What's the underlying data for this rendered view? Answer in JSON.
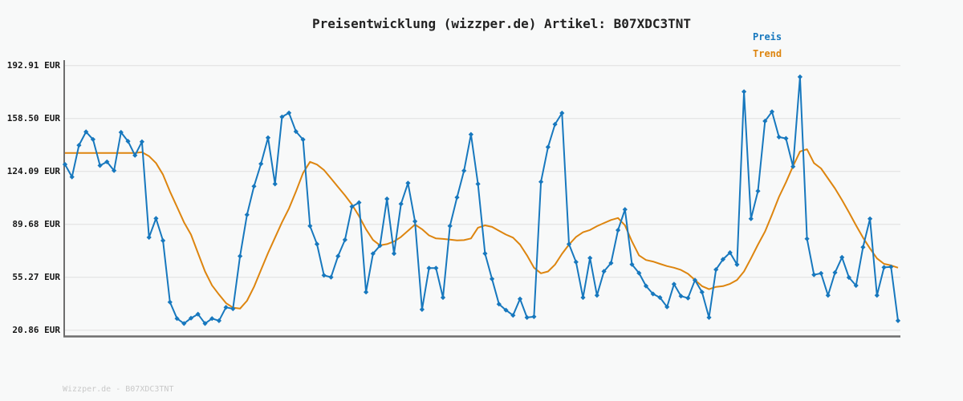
{
  "page": {
    "footer": "Wizzper.de - B07XDC3TNT"
  },
  "colors": {
    "background": "#f8f9f9",
    "grid": "#e6e6e6",
    "spine": "#6e6e6e",
    "price_blue": "#1778be",
    "trend_orange": "#dd850f",
    "title_text": "#222222",
    "tick_text": "#161616",
    "footer_text": "#c9c9c9"
  },
  "chart_data": {
    "type": "line",
    "title": "Preisentwicklung (wizzper.de) Artikel: B07XDC3TNT",
    "currency": "EUR",
    "grid": true,
    "legend": {
      "position": "top-right",
      "entries": [
        "Preis",
        "Trend"
      ]
    },
    "x_axis": {
      "tick_labels_visible": false,
      "points": 120
    },
    "y_axis": {
      "tick_labels": [
        "192.91 EUR",
        "158.50 EUR",
        "124.09 EUR",
        "89.68 EUR",
        "55.27 EUR",
        "20.86 EUR"
      ],
      "tick_values": [
        192.91,
        158.5,
        124.09,
        89.68,
        55.27,
        20.86
      ],
      "ylim": [
        17.4,
        196.4
      ]
    },
    "series": [
      {
        "name": "Preis",
        "color": "#1778be",
        "marker": "diamond",
        "values": [
          128.6,
          120.5,
          141.1,
          149.8,
          144.9,
          127.9,
          130.3,
          124.6,
          149.5,
          143.7,
          134.5,
          143.4,
          81.2,
          93.5,
          79.1,
          39.1,
          28.4,
          25.2,
          28.7,
          31.3,
          25.2,
          28.4,
          27.0,
          35.7,
          34.8,
          69.0,
          95.9,
          114.4,
          129.0,
          146.0,
          115.9,
          159.5,
          162.1,
          150.0,
          144.8,
          88.6,
          76.8,
          56.5,
          55.3,
          69.0,
          79.6,
          101.2,
          103.8,
          45.6,
          70.6,
          75.8,
          106.2,
          70.7,
          102.9,
          116.5,
          91.6,
          34.3,
          61.2,
          61.2,
          42.1,
          88.6,
          107.2,
          124.5,
          148.1,
          115.9,
          70.7,
          54.2,
          37.8,
          33.9,
          30.5,
          41.2,
          29.1,
          29.6,
          117.3,
          139.9,
          154.7,
          162.0,
          76.8,
          65.2,
          42.1,
          67.8,
          43.5,
          59.1,
          64.5,
          85.9,
          99.3,
          63.6,
          58.0,
          49.6,
          44.4,
          42.1,
          36.0,
          50.8,
          43.0,
          41.7,
          53.4,
          45.6,
          29.1,
          60.3,
          66.9,
          71.3,
          63.5,
          175.9,
          93.3,
          111.3,
          156.8,
          162.9,
          146.4,
          145.5,
          127.2,
          185.5,
          80.3,
          56.9,
          57.8,
          43.5,
          58.3,
          68.2,
          55.1,
          49.9,
          74.8,
          93.3,
          43.5,
          61.7,
          62.0,
          27.0
        ]
      },
      {
        "name": "Trend",
        "color": "#dd850f",
        "marker": "none",
        "values": [
          136.1,
          136.1,
          136.1,
          136.1,
          136.1,
          136.1,
          136.1,
          136.1,
          136.1,
          136.1,
          136.1,
          136.6,
          134.0,
          129.5,
          122.0,
          111.0,
          101.0,
          91.0,
          83.0,
          71.0,
          59.0,
          50.0,
          44.0,
          38.5,
          35.5,
          34.9,
          40.0,
          49.0,
          60.0,
          71.0,
          81.0,
          91.0,
          100.0,
          111.0,
          123.0,
          130.3,
          128.5,
          125.0,
          119.5,
          114.0,
          108.5,
          102.5,
          95.0,
          86.5,
          79.5,
          76.0,
          76.8,
          78.5,
          81.5,
          85.5,
          89.5,
          86.5,
          82.5,
          80.5,
          80.2,
          79.8,
          79.2,
          79.4,
          80.5,
          87.5,
          89.0,
          88.0,
          85.5,
          83.0,
          81.0,
          76.5,
          69.5,
          61.5,
          57.8,
          59.0,
          63.5,
          70.5,
          76.5,
          81.5,
          84.5,
          86.0,
          88.5,
          90.5,
          92.5,
          93.8,
          89.0,
          78.5,
          69.5,
          66.5,
          65.5,
          64.0,
          62.5,
          61.5,
          60.0,
          57.5,
          53.5,
          49.5,
          47.5,
          49.0,
          49.5,
          51.0,
          53.5,
          59.0,
          67.5,
          76.5,
          85.0,
          96.0,
          107.5,
          117.0,
          127.5,
          137.0,
          138.5,
          129.5,
          126.0,
          119.5,
          113.0,
          105.5,
          97.5,
          89.0,
          81.0,
          74.0,
          67.5,
          64.0,
          63.0,
          61.5
        ]
      }
    ]
  }
}
